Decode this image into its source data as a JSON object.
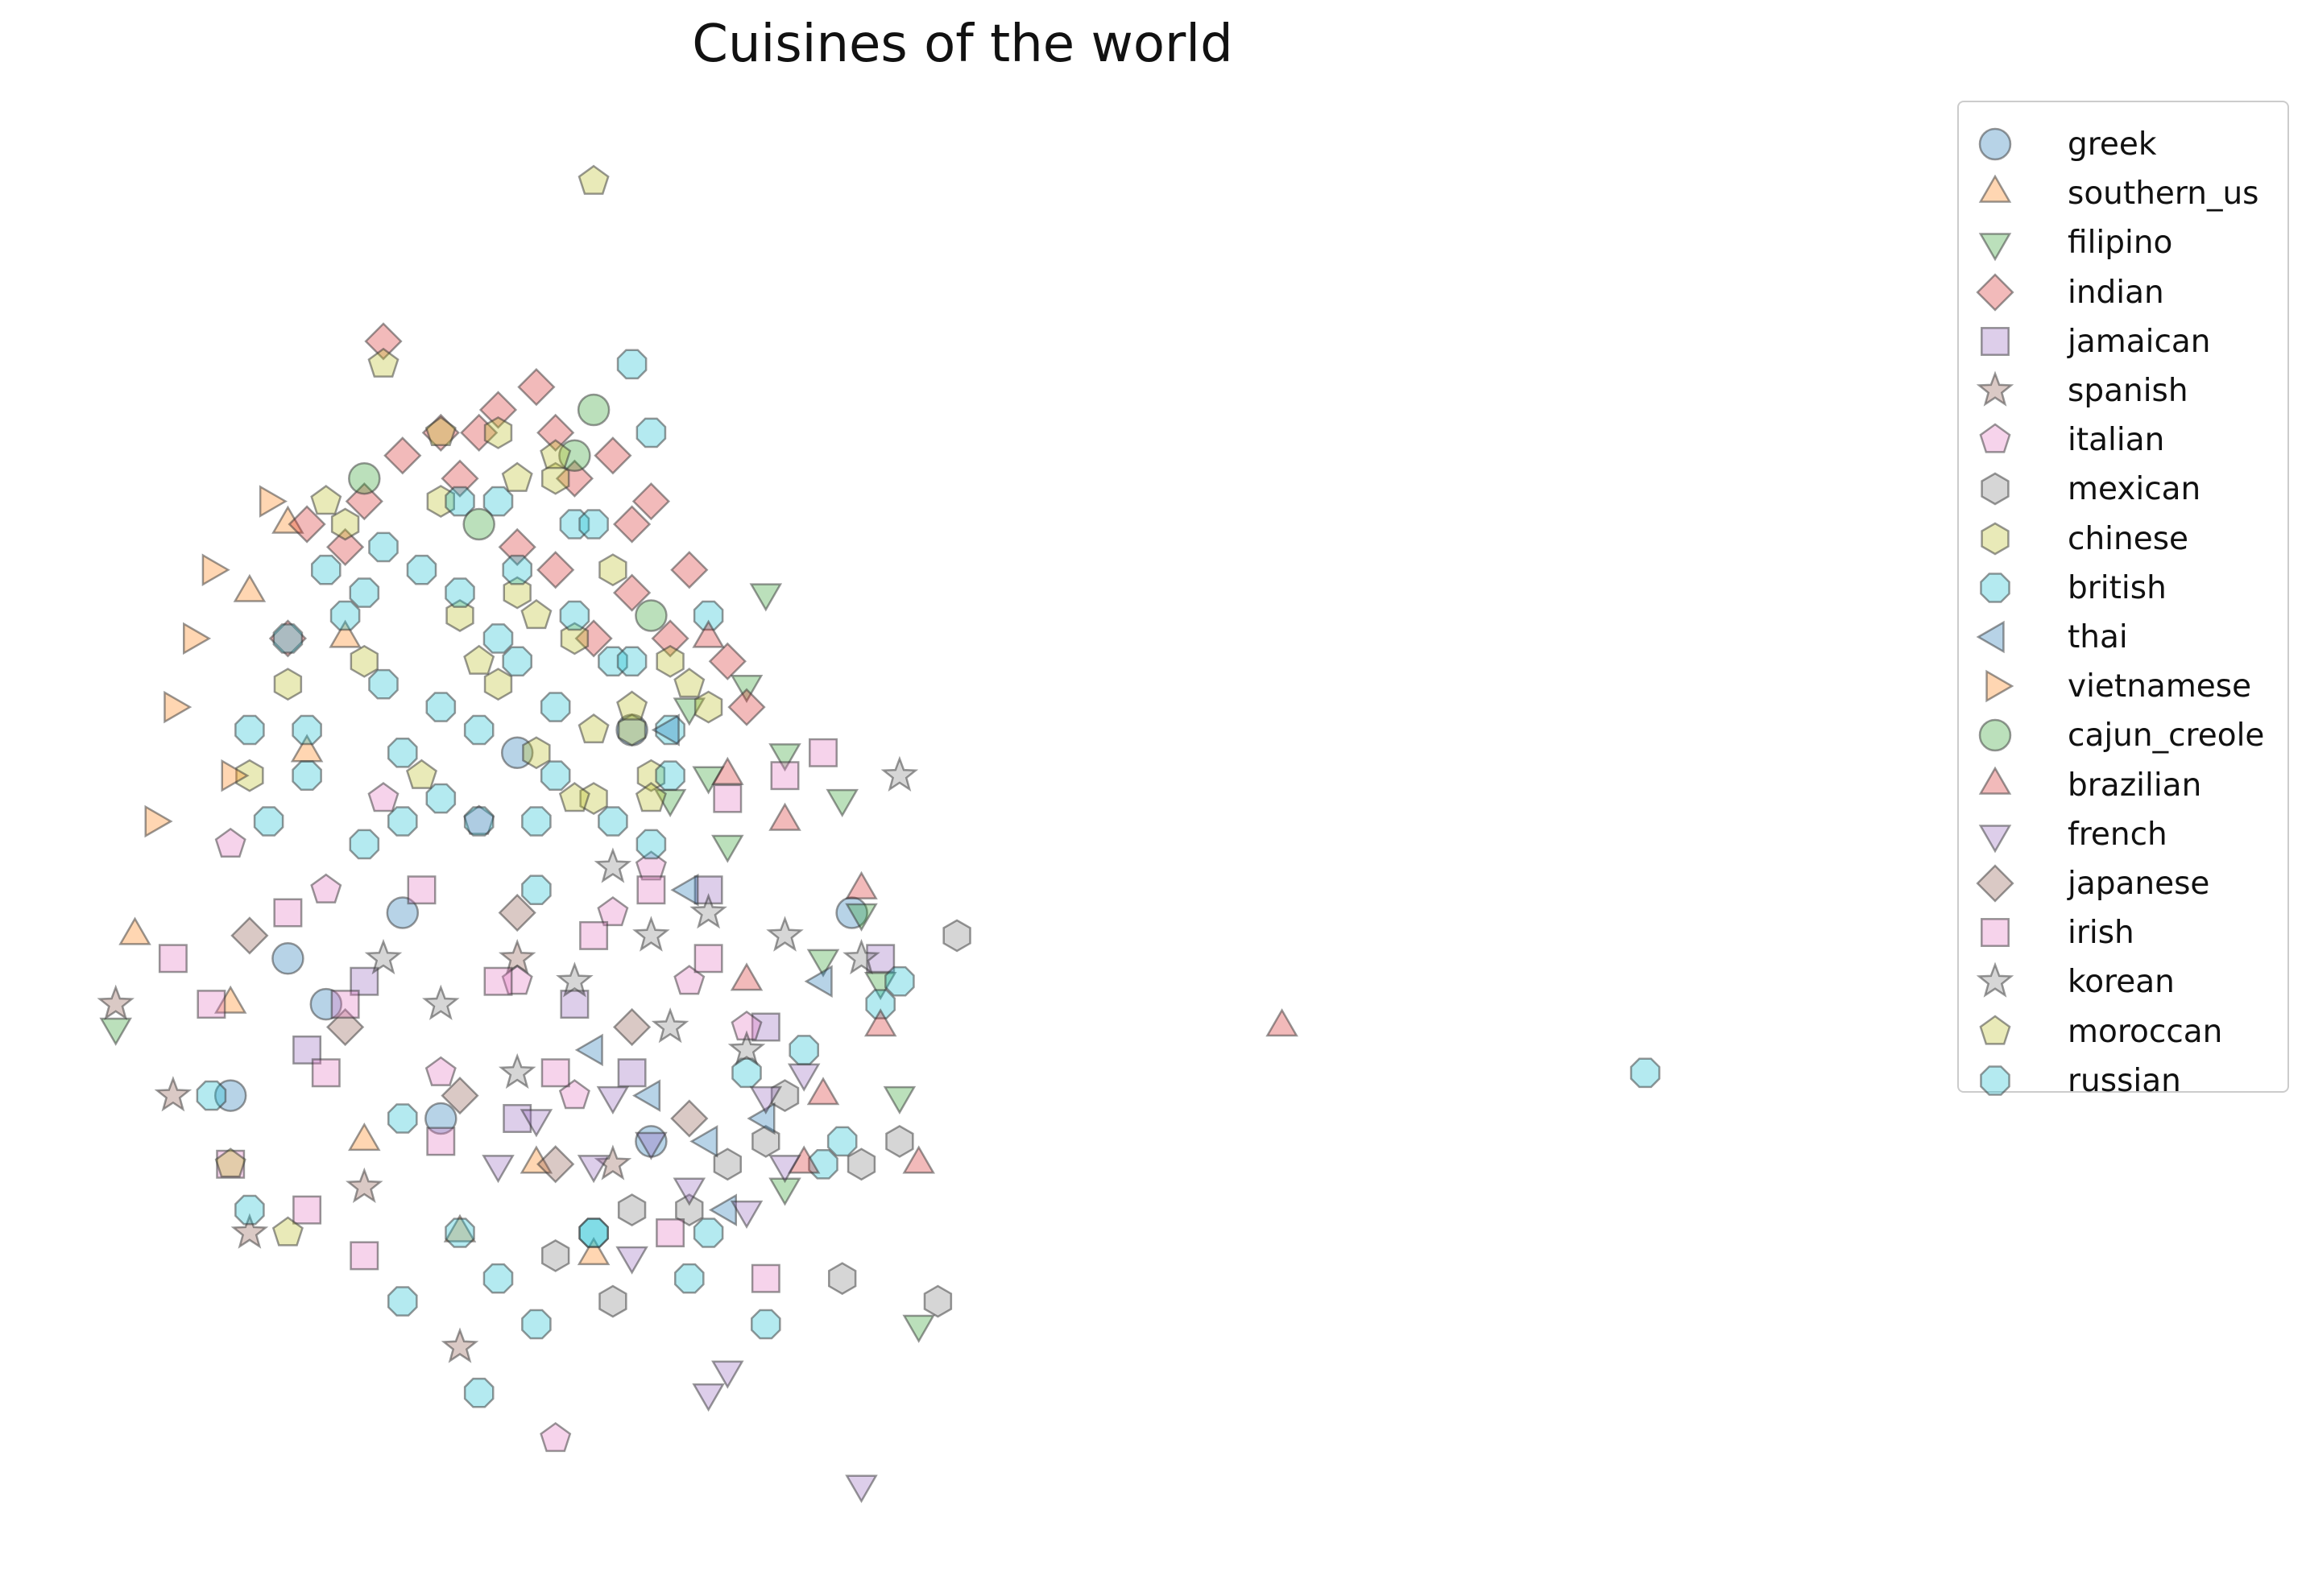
{
  "chart_data": {
    "type": "scatter",
    "title": "Cuisines of the world",
    "xlabel": "",
    "ylabel": "",
    "axes_visible": false,
    "grid": false,
    "legend_position": "top-right",
    "xlim": [
      -1.6,
      7.5
    ],
    "ylim": [
      -2.2,
      4.0
    ],
    "series": [
      {
        "name": "greek",
        "marker": "circle",
        "color": "#1f77b4",
        "points": [
          [
            -0.6,
            0.3
          ],
          [
            -0.4,
            0.1
          ],
          [
            0.2,
            -0.4
          ],
          [
            0.6,
            1.2
          ],
          [
            1.2,
            1.3
          ],
          [
            1.3,
            -0.5
          ],
          [
            2.35,
            0.5
          ],
          [
            -0.9,
            -0.3
          ],
          [
            0.0,
            0.5
          ]
        ]
      },
      {
        "name": "southern_us",
        "marker": "triangle-up",
        "color": "#ff7f0e",
        "points": [
          [
            -0.8,
            1.9
          ],
          [
            -0.6,
            2.2
          ],
          [
            -0.3,
            1.7
          ],
          [
            -1.4,
            0.4
          ],
          [
            -0.9,
            0.1
          ],
          [
            1.0,
            -1.0
          ],
          [
            0.3,
            -0.9
          ],
          [
            0.7,
            -0.6
          ],
          [
            -0.2,
            -0.5
          ],
          [
            -0.5,
            1.2
          ]
        ]
      },
      {
        "name": "filipino",
        "marker": "triangle-down",
        "color": "#2ca02c",
        "points": [
          [
            1.5,
            1.4
          ],
          [
            1.8,
            1.5
          ],
          [
            1.9,
            1.9
          ],
          [
            2.0,
            1.2
          ],
          [
            2.3,
            1.0
          ],
          [
            2.4,
            0.5
          ],
          [
            2.6,
            -0.3
          ],
          [
            2.7,
            -1.3
          ],
          [
            1.7,
            0.8
          ],
          [
            -1.5,
            0.0
          ],
          [
            2.2,
            0.3
          ],
          [
            2.0,
            -0.7
          ],
          [
            1.4,
            1.0
          ],
          [
            1.6,
            1.1
          ],
          [
            2.5,
            0.2
          ]
        ]
      },
      {
        "name": "indian",
        "marker": "diamond",
        "color": "#d62728",
        "points": [
          [
            -0.1,
            3.0
          ],
          [
            0.7,
            2.8
          ],
          [
            0.4,
            2.6
          ],
          [
            0.9,
            2.4
          ],
          [
            1.1,
            2.5
          ],
          [
            1.3,
            2.3
          ],
          [
            1.5,
            2.0
          ],
          [
            0.0,
            2.5
          ],
          [
            -0.5,
            2.2
          ],
          [
            -0.2,
            2.3
          ],
          [
            0.5,
            2.7
          ],
          [
            0.8,
            2.0
          ],
          [
            1.2,
            1.9
          ],
          [
            -0.6,
            1.7
          ],
          [
            1.7,
            1.6
          ],
          [
            1.8,
            1.4
          ],
          [
            1.2,
            2.2
          ],
          [
            0.3,
            2.4
          ],
          [
            -0.3,
            2.1
          ],
          [
            1.0,
            1.7
          ],
          [
            0.6,
            2.1
          ],
          [
            1.4,
            1.7
          ],
          [
            0.2,
            2.6
          ],
          [
            0.8,
            2.6
          ]
        ]
      },
      {
        "name": "jamaican",
        "marker": "square",
        "color": "#9467bd",
        "points": [
          [
            2.5,
            0.3
          ],
          [
            1.6,
            0.6
          ],
          [
            1.2,
            -0.2
          ],
          [
            0.6,
            -0.4
          ],
          [
            -0.5,
            -0.1
          ],
          [
            0.9,
            0.1
          ],
          [
            1.9,
            0.0
          ],
          [
            -0.2,
            0.2
          ]
        ]
      },
      {
        "name": "spanish",
        "marker": "star",
        "color": "#8c564b",
        "points": [
          [
            -1.5,
            0.1
          ],
          [
            -0.8,
            -0.9
          ],
          [
            0.3,
            -1.4
          ],
          [
            -1.2,
            -0.3
          ],
          [
            0.6,
            0.3
          ],
          [
            1.1,
            -0.6
          ],
          [
            -0.2,
            -0.7
          ]
        ]
      },
      {
        "name": "italian",
        "marker": "pentagon",
        "color": "#e377c2",
        "points": [
          [
            0.8,
            -1.8
          ],
          [
            1.1,
            0.5
          ],
          [
            0.4,
            0.9
          ],
          [
            -0.4,
            0.6
          ],
          [
            1.5,
            0.2
          ],
          [
            1.8,
            0.0
          ],
          [
            -0.9,
            0.8
          ],
          [
            0.2,
            -0.2
          ],
          [
            1.3,
            0.7
          ],
          [
            0.9,
            -0.3
          ],
          [
            -0.1,
            1.0
          ],
          [
            0.6,
            0.2
          ]
        ]
      },
      {
        "name": "mexican",
        "marker": "hexagon",
        "color": "#7f7f7f",
        "points": [
          [
            2.9,
            0.4
          ],
          [
            2.8,
            -1.2
          ],
          [
            2.4,
            -0.6
          ],
          [
            2.3,
            -1.1
          ],
          [
            1.9,
            -0.5
          ],
          [
            1.1,
            -1.2
          ],
          [
            2.0,
            -0.3
          ],
          [
            1.7,
            -0.6
          ],
          [
            1.2,
            -0.8
          ],
          [
            2.6,
            -0.5
          ],
          [
            1.5,
            -0.8
          ],
          [
            0.8,
            -1.0
          ]
        ]
      },
      {
        "name": "chinese",
        "marker": "hexagon",
        "color": "#bcbd22",
        "points": [
          [
            0.5,
            2.6
          ],
          [
            0.8,
            2.4
          ],
          [
            1.1,
            2.0
          ],
          [
            -0.3,
            2.2
          ],
          [
            0.2,
            2.3
          ],
          [
            1.4,
            1.6
          ],
          [
            1.6,
            1.4
          ],
          [
            0.6,
            1.9
          ],
          [
            0.9,
            1.7
          ],
          [
            -0.6,
            1.5
          ],
          [
            1.2,
            1.3
          ],
          [
            0.3,
            1.8
          ],
          [
            -0.2,
            1.6
          ],
          [
            0.7,
            1.2
          ],
          [
            1.0,
            1.0
          ],
          [
            -0.8,
            1.1
          ],
          [
            1.3,
            1.1
          ],
          [
            0.5,
            1.5
          ]
        ]
      },
      {
        "name": "british",
        "marker": "octagon",
        "color": "#17becf",
        "points": [
          [
            1.2,
            2.9
          ],
          [
            1.6,
            1.8
          ],
          [
            -1.0,
            -0.3
          ],
          [
            0.5,
            -1.1
          ],
          [
            1.0,
            -0.9
          ],
          [
            2.2,
            -0.6
          ],
          [
            0.0,
            -0.4
          ],
          [
            0.3,
            1.9
          ],
          [
            0.6,
            1.6
          ],
          [
            -0.3,
            1.8
          ],
          [
            0.9,
            2.2
          ],
          [
            0.2,
            1.4
          ],
          [
            -0.5,
            1.3
          ],
          [
            0.8,
            1.1
          ],
          [
            1.4,
            1.3
          ],
          [
            -0.1,
            2.1
          ],
          [
            0.5,
            2.3
          ],
          [
            1.1,
            1.6
          ],
          [
            0.0,
            1.2
          ],
          [
            0.4,
            0.9
          ],
          [
            -0.7,
            0.9
          ],
          [
            1.3,
            0.8
          ],
          [
            0.7,
            0.6
          ],
          [
            -0.2,
            0.8
          ],
          [
            2.5,
            0.1
          ],
          [
            1.8,
            -0.2
          ],
          [
            1.6,
            -0.9
          ]
        ]
      },
      {
        "name": "thai",
        "marker": "triangle-left",
        "color": "#1f77b4",
        "points": [
          [
            1.4,
            1.3
          ],
          [
            2.2,
            0.2
          ],
          [
            1.7,
            -0.8
          ],
          [
            1.6,
            -0.5
          ],
          [
            1.3,
            -0.3
          ],
          [
            1.9,
            -0.4
          ],
          [
            1.0,
            -0.1
          ],
          [
            1.5,
            0.6
          ]
        ]
      },
      {
        "name": "vietnamese",
        "marker": "triangle-right",
        "color": "#ff7f0e",
        "points": [
          [
            -1.0,
            2.0
          ],
          [
            -0.7,
            2.3
          ],
          [
            -1.2,
            1.4
          ],
          [
            -1.1,
            1.7
          ],
          [
            -0.9,
            1.1
          ],
          [
            -1.3,
            0.9
          ]
        ]
      },
      {
        "name": "cajun_creole",
        "marker": "circle",
        "color": "#2ca02c",
        "points": [
          [
            1.0,
            2.7
          ],
          [
            0.9,
            2.5
          ],
          [
            -0.2,
            2.4
          ],
          [
            0.4,
            2.2
          ],
          [
            1.3,
            1.8
          ]
        ]
      },
      {
        "name": "brazilian",
        "marker": "triangle-up",
        "color": "#d62728",
        "points": [
          [
            4.6,
            0.0
          ],
          [
            1.6,
            1.7
          ],
          [
            1.7,
            1.1
          ],
          [
            2.5,
            0.0
          ],
          [
            2.4,
            0.6
          ],
          [
            2.0,
            0.9
          ],
          [
            2.7,
            -0.6
          ],
          [
            2.2,
            -0.3
          ],
          [
            1.8,
            0.2
          ],
          [
            2.1,
            -0.6
          ]
        ]
      },
      {
        "name": "french",
        "marker": "triangle-down",
        "color": "#9467bd",
        "points": [
          [
            2.4,
            -2.0
          ],
          [
            1.7,
            -1.5
          ],
          [
            1.6,
            -1.6
          ],
          [
            1.2,
            -1.0
          ],
          [
            2.0,
            -0.6
          ],
          [
            1.3,
            -0.5
          ],
          [
            1.8,
            -0.8
          ],
          [
            1.5,
            -0.7
          ],
          [
            1.0,
            -0.6
          ],
          [
            0.7,
            -0.4
          ],
          [
            2.1,
            -0.2
          ],
          [
            1.9,
            -0.3
          ],
          [
            0.5,
            -0.6
          ],
          [
            1.1,
            -0.3
          ]
        ]
      },
      {
        "name": "japanese",
        "marker": "diamond",
        "color": "#8c564b",
        "points": [
          [
            0.3,
            -0.3
          ],
          [
            0.8,
            -0.6
          ],
          [
            1.2,
            0.0
          ],
          [
            -0.3,
            0.0
          ],
          [
            1.5,
            -0.4
          ],
          [
            0.6,
            0.5
          ],
          [
            -0.8,
            0.4
          ]
        ]
      },
      {
        "name": "irish",
        "marker": "square",
        "color": "#e377c2",
        "points": [
          [
            2.2,
            1.2
          ],
          [
            2.0,
            1.1
          ],
          [
            1.9,
            -1.1
          ],
          [
            -0.2,
            -1.0
          ],
          [
            -0.5,
            -0.8
          ],
          [
            -0.9,
            -0.6
          ],
          [
            1.4,
            -0.9
          ],
          [
            1.7,
            1.0
          ],
          [
            0.2,
            -0.5
          ],
          [
            -0.3,
            0.1
          ],
          [
            0.5,
            0.2
          ],
          [
            1.0,
            0.4
          ],
          [
            -0.6,
            0.5
          ],
          [
            -1.2,
            0.3
          ],
          [
            1.3,
            0.6
          ],
          [
            0.8,
            -0.2
          ],
          [
            -1.0,
            0.1
          ],
          [
            0.1,
            0.6
          ],
          [
            1.6,
            0.3
          ],
          [
            -0.4,
            -0.2
          ]
        ]
      },
      {
        "name": "korean",
        "marker": "star",
        "color": "#7f7f7f",
        "points": [
          [
            2.6,
            1.1
          ],
          [
            2.4,
            0.3
          ],
          [
            1.4,
            0.0
          ],
          [
            0.9,
            0.2
          ],
          [
            1.8,
            -0.1
          ],
          [
            0.2,
            0.1
          ],
          [
            1.1,
            0.7
          ],
          [
            1.6,
            0.5
          ],
          [
            0.6,
            -0.2
          ],
          [
            -0.1,
            0.3
          ],
          [
            1.3,
            0.4
          ],
          [
            2.0,
            0.4
          ]
        ]
      },
      {
        "name": "moroccan",
        "marker": "pentagon",
        "color": "#bcbd22",
        "points": [
          [
            1.0,
            3.7
          ],
          [
            -0.1,
            2.9
          ],
          [
            0.8,
            2.5
          ],
          [
            0.6,
            2.4
          ],
          [
            1.5,
            1.5
          ],
          [
            1.2,
            1.4
          ],
          [
            0.7,
            1.8
          ],
          [
            1.0,
            1.3
          ],
          [
            0.2,
            2.6
          ],
          [
            -0.4,
            2.3
          ],
          [
            0.4,
            1.6
          ],
          [
            0.9,
            1.0
          ],
          [
            -0.9,
            -0.6
          ],
          [
            -0.6,
            -0.9
          ],
          [
            0.1,
            1.1
          ],
          [
            1.3,
            1.0
          ]
        ]
      },
      {
        "name": "russian",
        "marker": "octagon",
        "color": "#17becf",
        "points": [
          [
            6.5,
            -0.2
          ],
          [
            2.6,
            0.2
          ],
          [
            2.1,
            -0.1
          ],
          [
            1.3,
            2.6
          ],
          [
            -0.6,
            1.7
          ],
          [
            0.4,
            1.3
          ],
          [
            0.0,
            0.9
          ],
          [
            0.8,
            1.4
          ],
          [
            -0.2,
            1.9
          ],
          [
            0.6,
            2.0
          ],
          [
            1.1,
            0.9
          ],
          [
            -0.5,
            1.1
          ],
          [
            0.3,
            2.3
          ],
          [
            0.9,
            1.8
          ],
          [
            -0.1,
            1.5
          ],
          [
            0.7,
            0.9
          ],
          [
            0.2,
            1.0
          ],
          [
            1.4,
            1.1
          ],
          [
            0.5,
            1.7
          ],
          [
            -0.4,
            2.0
          ],
          [
            1.0,
            2.2
          ],
          [
            -0.8,
            1.3
          ],
          [
            1.2,
            1.6
          ],
          [
            0.1,
            2.0
          ],
          [
            0.0,
            -1.2
          ],
          [
            0.4,
            -1.6
          ],
          [
            0.7,
            -1.3
          ],
          [
            1.0,
            -0.9
          ],
          [
            1.5,
            -1.1
          ],
          [
            1.9,
            -1.3
          ],
          [
            2.3,
            -0.5
          ],
          [
            -0.8,
            -0.8
          ],
          [
            0.3,
            -0.9
          ]
        ]
      }
    ]
  }
}
